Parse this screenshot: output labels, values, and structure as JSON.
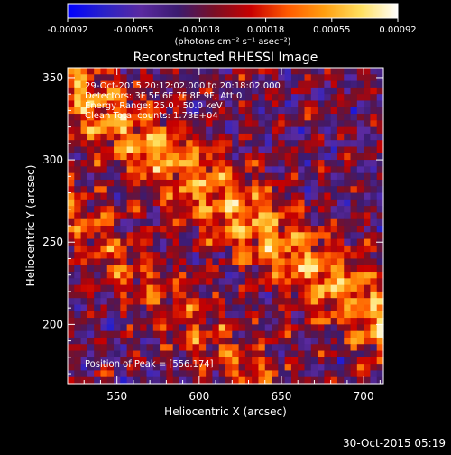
{
  "chart_data": {
    "type": "heatmap",
    "title": "Reconstructed RHESSI Image",
    "xlabel": "Heliocentric X (arcsec)",
    "ylabel": "Heliocentric Y (arcsec)",
    "xlim": [
      520,
      712
    ],
    "ylim": [
      164,
      356
    ],
    "x_ticks": [
      550,
      600,
      650,
      700
    ],
    "y_ticks": [
      200,
      250,
      300,
      350
    ],
    "colorbar": {
      "ticks": [
        "-0.00092",
        "-0.00055",
        "-0.00018",
        "0.00018",
        "0.00055",
        "0.00092"
      ],
      "min": -0.00092,
      "max": 0.00092,
      "units_label": "(photons cm⁻² s⁻¹ asec⁻²)",
      "colormap_stops": [
        "#0000ff",
        "#2a22c8",
        "#5a2aa0",
        "#3b1b70",
        "#7a0f25",
        "#c80000",
        "#ff5a00",
        "#ff9f10",
        "#ffe060",
        "#ffffff"
      ]
    },
    "annotations": [
      "29-Oct-2015 20:12:02.000  to 20:18:02.000",
      "Detectors: 3F 5F 6F 7F 8F 9F, Att 0",
      "Energy Range: 25.0 - 50.0 keV",
      "Clean    Total counts: 1.73E+04"
    ],
    "peak_label": "Position of Peak = [556,174]",
    "peak": [
      556,
      174
    ],
    "footer_timestamp": "30-Oct-2015 05:19"
  }
}
